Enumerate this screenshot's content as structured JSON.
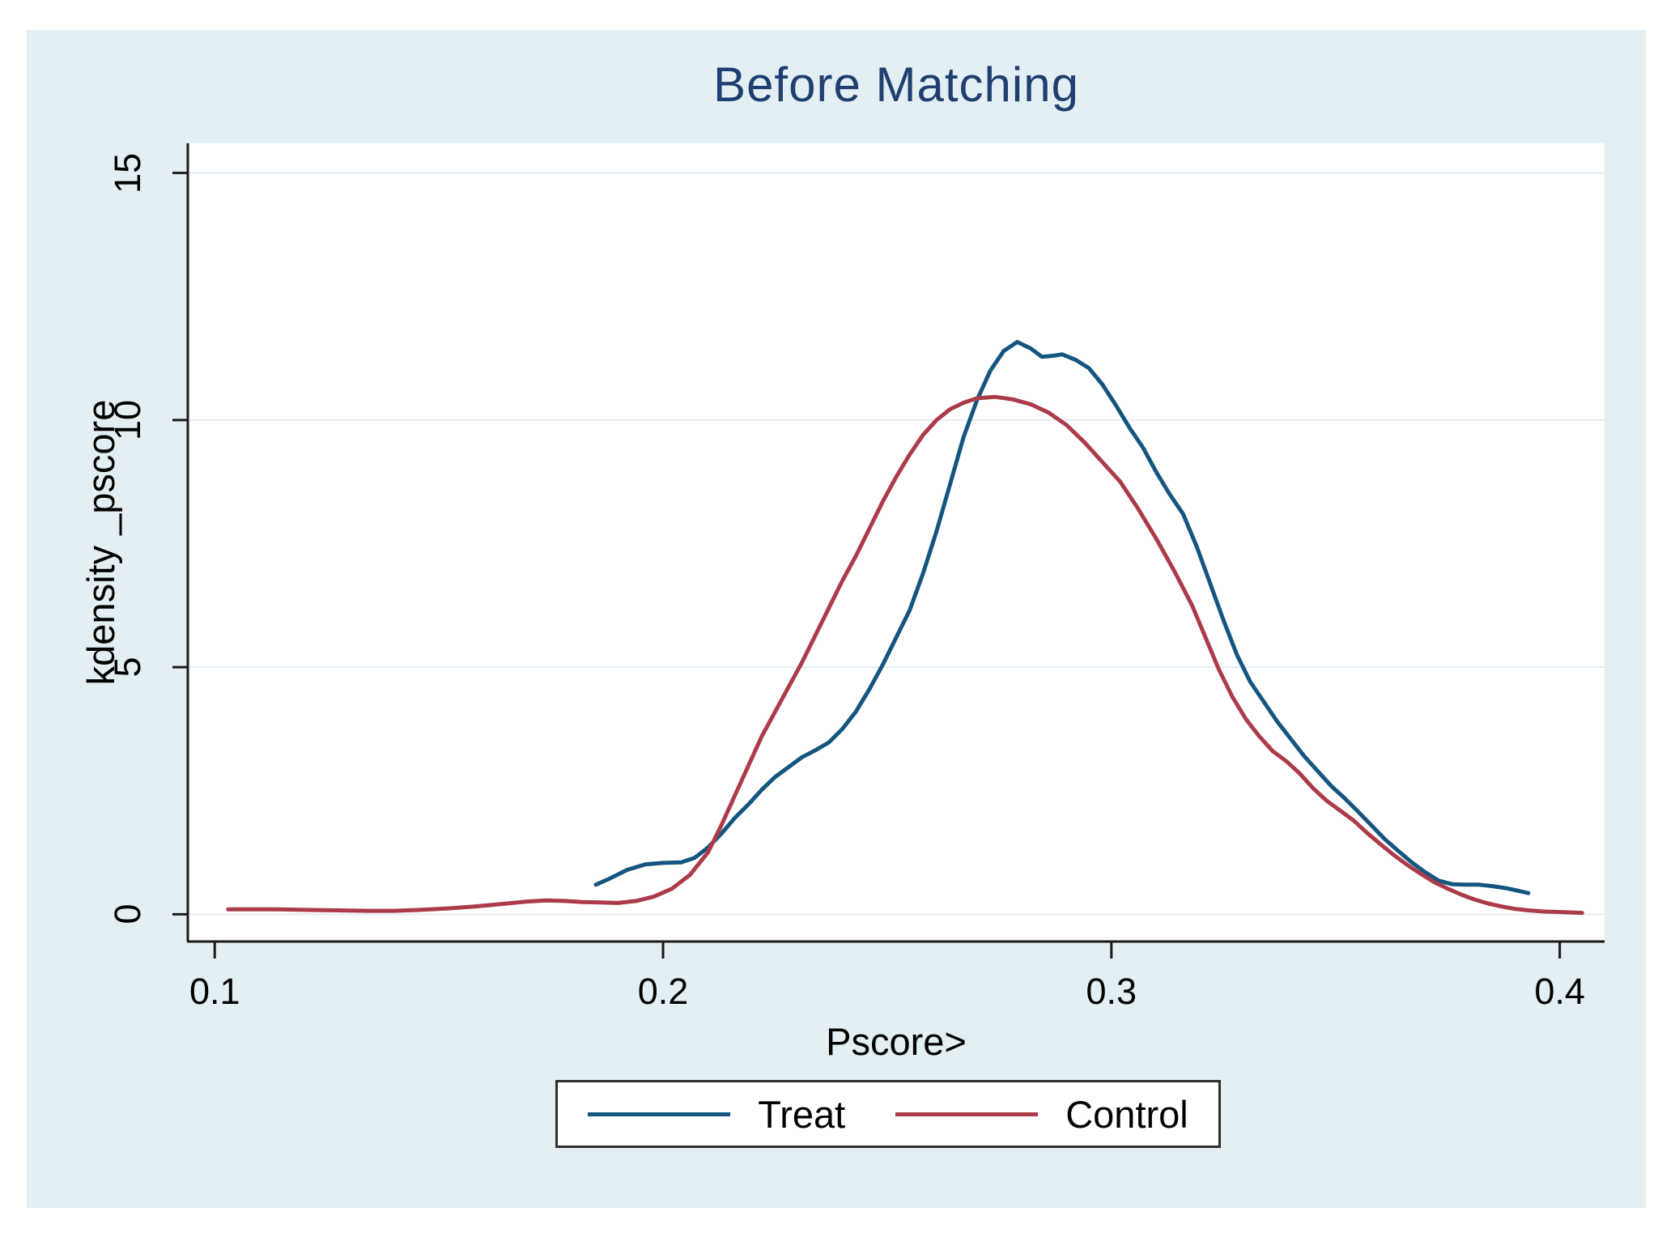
{
  "chart_data": {
    "type": "line",
    "title": "Before Matching",
    "xlabel": "Pscore>",
    "ylabel": "kdensity _pscore",
    "x_ticks": [
      0.1,
      0.2,
      0.3,
      0.4
    ],
    "x_tick_labels": [
      "0.1",
      "0.2",
      "0.3",
      "0.4"
    ],
    "y_ticks": [
      0,
      5,
      10,
      15
    ],
    "y_tick_labels": [
      "0",
      "5",
      "10",
      "15"
    ],
    "xlim": [
      0.094,
      0.41
    ],
    "ylim": [
      -0.55,
      15.6
    ],
    "grid": true,
    "legend_position": "bottom-center",
    "series": [
      {
        "name": "Treat",
        "color": "#14557f",
        "points": [
          [
            0.185,
            0.6
          ],
          [
            0.188,
            0.72
          ],
          [
            0.192,
            0.9
          ],
          [
            0.196,
            1.01
          ],
          [
            0.2,
            1.04
          ],
          [
            0.204,
            1.05
          ],
          [
            0.207,
            1.14
          ],
          [
            0.21,
            1.35
          ],
          [
            0.213,
            1.63
          ],
          [
            0.216,
            1.95
          ],
          [
            0.219,
            2.22
          ],
          [
            0.222,
            2.52
          ],
          [
            0.225,
            2.78
          ],
          [
            0.228,
            2.98
          ],
          [
            0.231,
            3.18
          ],
          [
            0.234,
            3.32
          ],
          [
            0.237,
            3.48
          ],
          [
            0.24,
            3.75
          ],
          [
            0.243,
            4.1
          ],
          [
            0.246,
            4.55
          ],
          [
            0.249,
            5.05
          ],
          [
            0.252,
            5.6
          ],
          [
            0.255,
            6.15
          ],
          [
            0.258,
            6.9
          ],
          [
            0.261,
            7.75
          ],
          [
            0.264,
            8.7
          ],
          [
            0.267,
            9.65
          ],
          [
            0.27,
            10.4
          ],
          [
            0.273,
            11.0
          ],
          [
            0.276,
            11.4
          ],
          [
            0.279,
            11.58
          ],
          [
            0.282,
            11.45
          ],
          [
            0.2845,
            11.28
          ],
          [
            0.287,
            11.3
          ],
          [
            0.289,
            11.33
          ],
          [
            0.292,
            11.22
          ],
          [
            0.295,
            11.05
          ],
          [
            0.298,
            10.72
          ],
          [
            0.301,
            10.3
          ],
          [
            0.304,
            9.85
          ],
          [
            0.307,
            9.45
          ],
          [
            0.31,
            8.95
          ],
          [
            0.313,
            8.5
          ],
          [
            0.316,
            8.1
          ],
          [
            0.319,
            7.45
          ],
          [
            0.322,
            6.7
          ],
          [
            0.325,
            5.95
          ],
          [
            0.328,
            5.25
          ],
          [
            0.331,
            4.7
          ],
          [
            0.334,
            4.3
          ],
          [
            0.337,
            3.9
          ],
          [
            0.34,
            3.55
          ],
          [
            0.343,
            3.2
          ],
          [
            0.346,
            2.9
          ],
          [
            0.349,
            2.6
          ],
          [
            0.352,
            2.35
          ],
          [
            0.355,
            2.08
          ],
          [
            0.358,
            1.8
          ],
          [
            0.361,
            1.52
          ],
          [
            0.364,
            1.28
          ],
          [
            0.367,
            1.05
          ],
          [
            0.37,
            0.85
          ],
          [
            0.373,
            0.68
          ],
          [
            0.376,
            0.61
          ],
          [
            0.379,
            0.6
          ],
          [
            0.382,
            0.6
          ],
          [
            0.385,
            0.57
          ],
          [
            0.388,
            0.53
          ],
          [
            0.391,
            0.47
          ],
          [
            0.393,
            0.43
          ]
        ]
      },
      {
        "name": "Control",
        "color": "#ac3b49",
        "points": [
          [
            0.103,
            0.1
          ],
          [
            0.108,
            0.1
          ],
          [
            0.114,
            0.1
          ],
          [
            0.12,
            0.09
          ],
          [
            0.127,
            0.08
          ],
          [
            0.134,
            0.07
          ],
          [
            0.14,
            0.07
          ],
          [
            0.146,
            0.09
          ],
          [
            0.152,
            0.12
          ],
          [
            0.158,
            0.16
          ],
          [
            0.164,
            0.21
          ],
          [
            0.17,
            0.26
          ],
          [
            0.174,
            0.28
          ],
          [
            0.178,
            0.27
          ],
          [
            0.182,
            0.25
          ],
          [
            0.186,
            0.24
          ],
          [
            0.19,
            0.23
          ],
          [
            0.194,
            0.27
          ],
          [
            0.198,
            0.36
          ],
          [
            0.202,
            0.52
          ],
          [
            0.206,
            0.8
          ],
          [
            0.21,
            1.25
          ],
          [
            0.213,
            1.8
          ],
          [
            0.216,
            2.4
          ],
          [
            0.219,
            3.0
          ],
          [
            0.222,
            3.6
          ],
          [
            0.225,
            4.1
          ],
          [
            0.228,
            4.6
          ],
          [
            0.231,
            5.1
          ],
          [
            0.234,
            5.65
          ],
          [
            0.237,
            6.2
          ],
          [
            0.24,
            6.75
          ],
          [
            0.243,
            7.25
          ],
          [
            0.246,
            7.8
          ],
          [
            0.249,
            8.35
          ],
          [
            0.252,
            8.85
          ],
          [
            0.255,
            9.3
          ],
          [
            0.258,
            9.7
          ],
          [
            0.261,
            10.0
          ],
          [
            0.264,
            10.22
          ],
          [
            0.267,
            10.35
          ],
          [
            0.27,
            10.44
          ],
          [
            0.274,
            10.47
          ],
          [
            0.278,
            10.42
          ],
          [
            0.282,
            10.32
          ],
          [
            0.286,
            10.15
          ],
          [
            0.29,
            9.9
          ],
          [
            0.294,
            9.55
          ],
          [
            0.298,
            9.15
          ],
          [
            0.302,
            8.75
          ],
          [
            0.306,
            8.2
          ],
          [
            0.31,
            7.6
          ],
          [
            0.314,
            6.95
          ],
          [
            0.318,
            6.25
          ],
          [
            0.321,
            5.6
          ],
          [
            0.324,
            4.95
          ],
          [
            0.327,
            4.4
          ],
          [
            0.33,
            3.95
          ],
          [
            0.333,
            3.6
          ],
          [
            0.336,
            3.3
          ],
          [
            0.339,
            3.1
          ],
          [
            0.342,
            2.85
          ],
          [
            0.345,
            2.55
          ],
          [
            0.348,
            2.3
          ],
          [
            0.351,
            2.1
          ],
          [
            0.354,
            1.9
          ],
          [
            0.357,
            1.65
          ],
          [
            0.36,
            1.42
          ],
          [
            0.363,
            1.2
          ],
          [
            0.366,
            1.0
          ],
          [
            0.369,
            0.82
          ],
          [
            0.372,
            0.65
          ],
          [
            0.375,
            0.52
          ],
          [
            0.378,
            0.4
          ],
          [
            0.381,
            0.3
          ],
          [
            0.384,
            0.22
          ],
          [
            0.387,
            0.16
          ],
          [
            0.39,
            0.11
          ],
          [
            0.393,
            0.08
          ],
          [
            0.396,
            0.06
          ],
          [
            0.399,
            0.05
          ],
          [
            0.402,
            0.04
          ],
          [
            0.405,
            0.03
          ]
        ]
      }
    ],
    "colors": {
      "page_background": "#ffffff",
      "figure_background": "#e4eff3",
      "plot_background": "#ffffff",
      "gridline": "#e3edf4",
      "axis_line": "#1a1a1a",
      "title_color": "#1f3f70",
      "text_color": "#000000",
      "legend_border": "#2e2e2e"
    }
  }
}
